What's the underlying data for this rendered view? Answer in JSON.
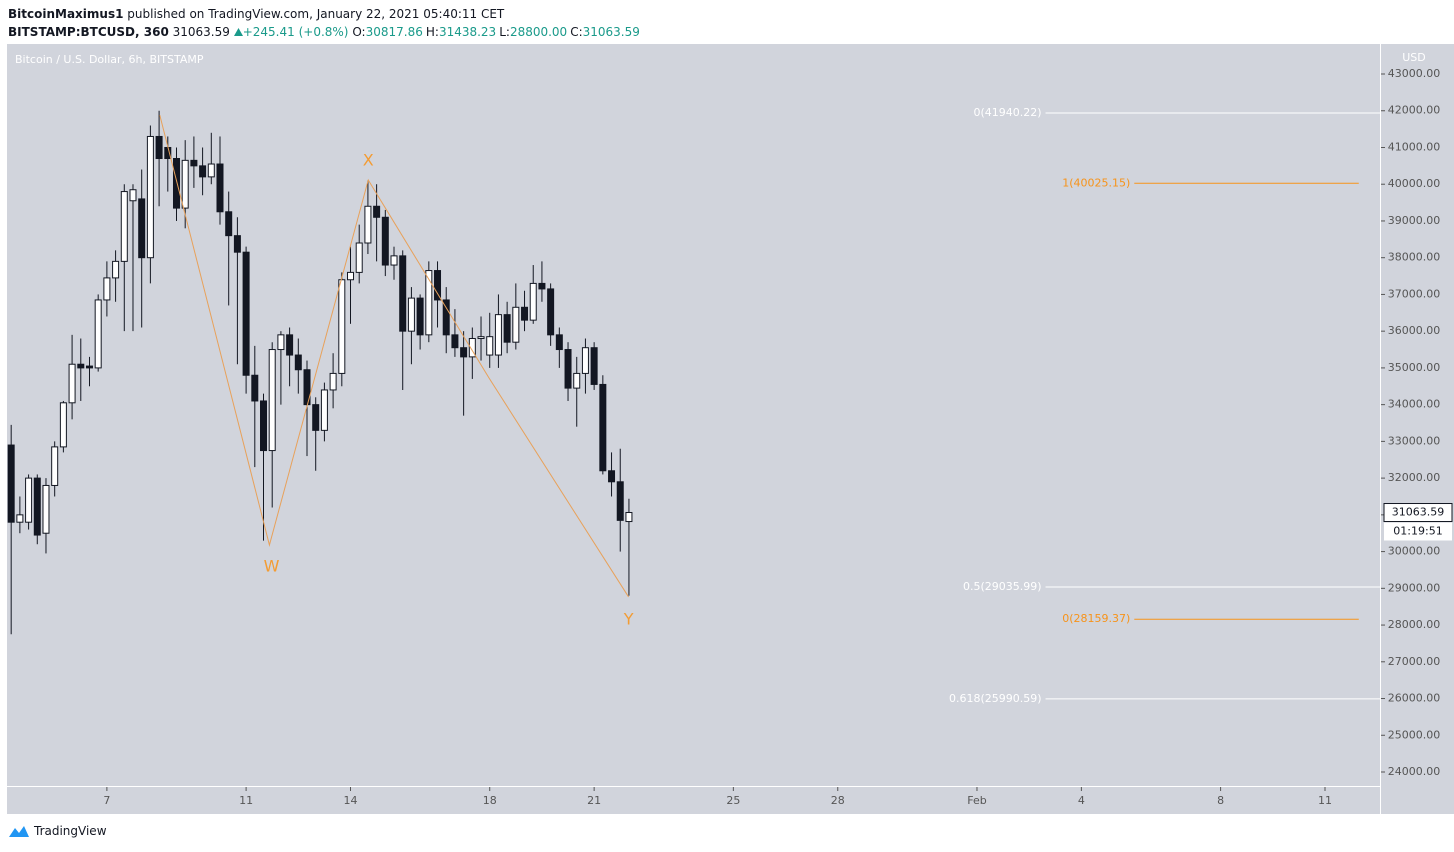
{
  "header": {
    "author": "BitcoinMaximus1",
    "published": "published on TradingView.com, January 22, 2021 05:40:11 CET",
    "symbol": "BITSTAMP:BTCUSD, 360",
    "last": "31063.59",
    "change": "+245.41 (+0.8%)",
    "ohlc": [
      {
        "label": "O:",
        "value": "30817.86"
      },
      {
        "label": "H:",
        "value": "31438.23"
      },
      {
        "label": "L:",
        "value": "28800.00"
      },
      {
        "label": "C:",
        "value": "31063.59"
      }
    ]
  },
  "footer": {
    "brand": "TradingView"
  },
  "chart_data": {
    "type": "candlestick",
    "title": "Bitcoin / U.S. Dollar, 6h, BITSTAMP",
    "y_unit": "USD",
    "last_price": 31063.59,
    "countdown": "01:19:51",
    "up_color": "#ffffff",
    "down_color": "#131722",
    "background": "#d1d4dc",
    "xlim": [
      4.13,
      43.58
    ],
    "ylim": [
      23619,
      43817
    ],
    "xticks": [
      7,
      11,
      14,
      18,
      21,
      25,
      28,
      {
        "value": 32,
        "label": "Feb"
      },
      {
        "value": 35,
        "label": "4"
      },
      {
        "value": 39,
        "label": "8"
      },
      {
        "value": 42,
        "label": "11"
      }
    ],
    "yticks": [
      {
        "value": 24000,
        "label": "24000.00"
      },
      {
        "value": 25000,
        "label": "25000.00"
      },
      {
        "value": 26000,
        "label": "26000.00"
      },
      {
        "value": 27000,
        "label": "27000.00"
      },
      {
        "value": 28000,
        "label": "28000.00"
      },
      {
        "value": 29000,
        "label": "29000.00"
      },
      {
        "value": 30000,
        "label": "30000.00"
      },
      {
        "value": 31000,
        "label": "31000.00"
      },
      {
        "value": 32000,
        "label": "32000.00"
      },
      {
        "value": 33000,
        "label": "33000.00"
      },
      {
        "value": 34000,
        "label": "34000.00"
      },
      {
        "value": 35000,
        "label": "35000.00"
      },
      {
        "value": 36000,
        "label": "36000.00"
      },
      {
        "value": 37000,
        "label": "37000.00"
      },
      {
        "value": 38000,
        "label": "38000.00"
      },
      {
        "value": 39000,
        "label": "39000.00"
      },
      {
        "value": 40000,
        "label": "40000.00"
      },
      {
        "value": 41000,
        "label": "41000.00"
      },
      {
        "value": 42000,
        "label": "42000.00"
      },
      {
        "value": 43000,
        "label": "43000.00"
      }
    ],
    "x": [
      4.25,
      4.5,
      4.75,
      5,
      5.25,
      5.5,
      5.75,
      6,
      6.25,
      6.5,
      6.75,
      7,
      7.25,
      7.5,
      7.75,
      8,
      8.25,
      8.5,
      8.75,
      9,
      9.25,
      9.5,
      9.75,
      10,
      10.25,
      10.5,
      10.75,
      11,
      11.25,
      11.5,
      11.75,
      12,
      12.25,
      12.5,
      12.75,
      13,
      13.25,
      13.5,
      13.75,
      14,
      14.25,
      14.5,
      14.75,
      15,
      15.25,
      15.5,
      15.75,
      16,
      16.25,
      16.5,
      16.75,
      17,
      17.25,
      17.5,
      17.75,
      18,
      18.25,
      18.5,
      18.75,
      19,
      19.25,
      19.5,
      19.75,
      20,
      20.25,
      20.5,
      20.75,
      21,
      21.25,
      21.5,
      21.75,
      22
    ],
    "open": [
      32900,
      30800,
      30800,
      32000,
      30500,
      31800,
      32850,
      34050,
      35100,
      35050,
      35000,
      36850,
      37450,
      37900,
      39550,
      39600,
      38000,
      41300,
      41000,
      40700,
      39350,
      40650,
      40500,
      40200,
      40550,
      39250,
      38600,
      38150,
      34800,
      34100,
      32750,
      35500,
      35900,
      35350,
      34950,
      34000,
      33300,
      34400,
      34850,
      37400,
      37600,
      38400,
      39400,
      39100,
      37800,
      38050,
      36000,
      36900,
      35900,
      37650,
      36850,
      35900,
      35550,
      35300,
      35800,
      35350,
      35350,
      36450,
      35700,
      36650,
      36300,
      37300,
      37150,
      35900,
      35500,
      34450,
      34850,
      35550,
      34550,
      32200,
      31900,
      30817.86
    ],
    "high": [
      33450,
      31500,
      32100,
      32100,
      32000,
      33000,
      34100,
      35900,
      35800,
      35300,
      37000,
      37900,
      38200,
      40000,
      40000,
      40400,
      41600,
      42000,
      41300,
      41000,
      41200,
      41300,
      41000,
      41400,
      41300,
      39800,
      39100,
      38300,
      35600,
      34300,
      35700,
      36000,
      36100,
      35800,
      35200,
      34200,
      34600,
      35400,
      37600,
      38300,
      38900,
      40100,
      40000,
      39300,
      38300,
      38200,
      37200,
      37000,
      37900,
      37900,
      37200,
      36600,
      36000,
      36100,
      36400,
      36500,
      37000,
      36800,
      37300,
      37100,
      37800,
      37900,
      37300,
      36100,
      35700,
      35300,
      35800,
      35700,
      34800,
      32700,
      32800,
      31438.23
    ],
    "low": [
      27750,
      30500,
      30600,
      30200,
      29950,
      31500,
      32700,
      33600,
      34100,
      34500,
      34900,
      36400,
      36800,
      36000,
      36000,
      36100,
      37300,
      39400,
      39800,
      39000,
      38800,
      39900,
      39700,
      40000,
      38900,
      36700,
      35100,
      34300,
      32300,
      30300,
      31200,
      34000,
      34500,
      34300,
      32600,
      32200,
      33000,
      33900,
      34500,
      36200,
      37300,
      38100,
      37900,
      37500,
      37400,
      34400,
      35100,
      35500,
      35700,
      36100,
      35400,
      35300,
      33700,
      34700,
      35200,
      35000,
      35000,
      35400,
      35500,
      36000,
      36200,
      36800,
      35600,
      35000,
      34100,
      33400,
      34300,
      34400,
      32100,
      31500,
      30000,
      28800
    ],
    "close": [
      30800,
      31000,
      32000,
      30450,
      31800,
      32850,
      34050,
      35100,
      35000,
      35000,
      36850,
      37450,
      37900,
      39800,
      39850,
      38000,
      41300,
      40700,
      40700,
      39350,
      40650,
      40500,
      40200,
      40550,
      39250,
      38600,
      38150,
      34800,
      34100,
      32750,
      35500,
      35900,
      35350,
      34950,
      34000,
      33300,
      34400,
      34850,
      37400,
      37600,
      38400,
      39400,
      39100,
      37800,
      38050,
      36000,
      36900,
      35900,
      37650,
      36850,
      35900,
      35550,
      35300,
      35800,
      35850,
      35850,
      36450,
      35700,
      36650,
      36300,
      37300,
      37150,
      35900,
      35500,
      34450,
      34850,
      35550,
      34550,
      32200,
      31900,
      30850,
      31063.59
    ],
    "wave": {
      "color": "#e8a15a",
      "x": [
        8.52,
        11.67,
        14.51,
        17.98,
        21.99
      ],
      "y": [
        41880,
        30180,
        40115,
        34725,
        28765
      ],
      "labels": [
        {
          "text": "W",
          "x": 11.73,
          "y": 29580
        },
        {
          "text": "X",
          "x": 14.51,
          "y": 40630
        },
        {
          "text": "Y",
          "x": 21.99,
          "y": 28140
        }
      ],
      "label_color": "#f39c34"
    },
    "levels": [
      {
        "label": "0(41940.22)",
        "value": 41940.22,
        "color": "#ffffff",
        "x_start": 33.97,
        "x_end": 43.58
      },
      {
        "label": "1(40025.15)",
        "value": 40025.15,
        "color": "#f7931a",
        "x_start": 36.52,
        "x_end": 42.97
      },
      {
        "label": "0.5(29035.99)",
        "value": 29035.99,
        "color": "#ffffff",
        "x_start": 33.97,
        "x_end": 43.58
      },
      {
        "label": "0(28159.37)",
        "value": 28159.37,
        "color": "#f7931a",
        "x_start": 36.52,
        "x_end": 42.97
      },
      {
        "label": "0.618(25990.59)",
        "value": 25990.59,
        "color": "#ffffff",
        "x_start": 33.97,
        "x_end": 43.58
      }
    ]
  }
}
